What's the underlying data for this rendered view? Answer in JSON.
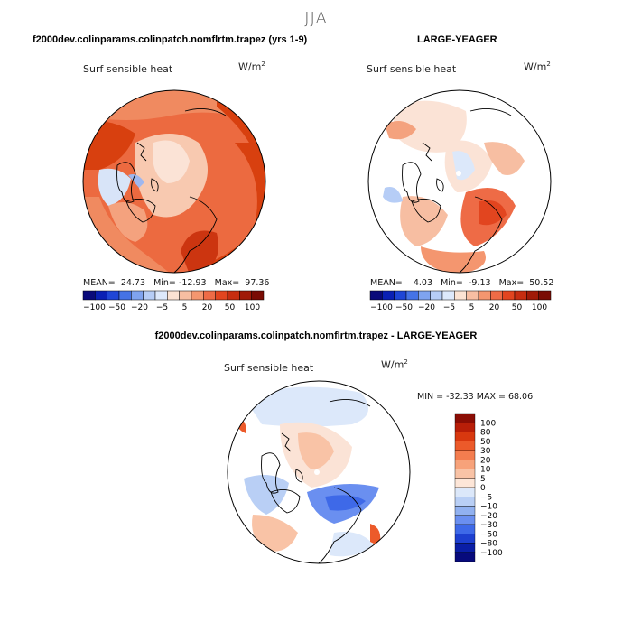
{
  "figure": {
    "season": "JJA",
    "panels": [
      {
        "title": "f2000dev.colinparams.colinpatch.nomflrtm.trapez (yrs 1-9)",
        "variable": "Surf sensible heat",
        "units": "W/m",
        "units_exp": "2",
        "stats": {
          "mean_label": "MEAN=",
          "mean": "24.73",
          "min_label": "Min=",
          "min": "-12.93",
          "max_label": "Max=",
          "max": "97.36"
        }
      },
      {
        "title": "LARGE-YEAGER",
        "variable": "Surf sensible heat",
        "units": "W/m",
        "units_exp": "2",
        "stats": {
          "mean_label": "MEAN=",
          "mean": "4.03",
          "min_label": "Min=",
          "min": "-9.13",
          "max_label": "Max=",
          "max": "50.52"
        }
      },
      {
        "title": "f2000dev.colinparams.colinpatch.nomflrtm.trapez - LARGE-YEAGER",
        "variable": "Surf sensible heat",
        "units": "W/m",
        "units_exp": "2",
        "stats_text": "MIN = -32.33 MAX = 68.06"
      }
    ]
  },
  "chart_data": [
    {
      "type": "heatmap",
      "projection": "north polar stereographic",
      "title": "f2000dev.colinparams.colinpatch.nomflrtm.trapez (yrs 1-9)",
      "variable": "Surf sensible heat",
      "units": "W/m2",
      "mean": 24.73,
      "min": -12.93,
      "max": 97.36,
      "colorbar": {
        "orientation": "horizontal",
        "tick_labels": [
          "-100",
          "-50",
          "-20",
          "-5",
          "5",
          "20",
          "50",
          "100"
        ],
        "colors": [
          "#0a0a7a",
          "#0a20b4",
          "#1f46d6",
          "#4573e6",
          "#7fa3ef",
          "#b6cdf6",
          "#dde9fb",
          "#fbe3d3",
          "#f7bea2",
          "#f4966f",
          "#ee6b46",
          "#e2451f",
          "#c72d10",
          "#a01a08",
          "#7a0c04"
        ]
      }
    },
    {
      "type": "heatmap",
      "projection": "north polar stereographic",
      "title": "LARGE-YEAGER",
      "variable": "Surf sensible heat",
      "units": "W/m2",
      "mean": 4.03,
      "min": -9.13,
      "max": 50.52,
      "colorbar": {
        "orientation": "horizontal",
        "tick_labels": [
          "-100",
          "-50",
          "-20",
          "-5",
          "5",
          "20",
          "50",
          "100"
        ],
        "colors": [
          "#0a0a7a",
          "#0a20b4",
          "#1f46d6",
          "#4573e6",
          "#7fa3ef",
          "#b6cdf6",
          "#dde9fb",
          "#fbe3d3",
          "#f7bea2",
          "#f4966f",
          "#ee6b46",
          "#e2451f",
          "#c72d10",
          "#a01a08",
          "#7a0c04"
        ]
      }
    },
    {
      "type": "heatmap",
      "projection": "north polar stereographic",
      "title": "f2000dev.colinparams.colinpatch.nomflrtm.trapez - LARGE-YEAGER",
      "variable": "Surf sensible heat",
      "units": "W/m2",
      "min": -32.33,
      "max": 68.06,
      "colorbar": {
        "orientation": "vertical",
        "tick_labels": [
          "100",
          "80",
          "50",
          "30",
          "20",
          "10",
          "5",
          "0",
          "-5",
          "-10",
          "-20",
          "-30",
          "-50",
          "-80",
          "-100"
        ],
        "colors": [
          "#8a0d04",
          "#b81e08",
          "#d8380f",
          "#ec5a2a",
          "#f47d4f",
          "#f7a27a",
          "#f9c3a6",
          "#fde6d8",
          "#dce8fa",
          "#b9cff5",
          "#91b1f0",
          "#6a8ff0",
          "#3e69e8",
          "#1d3fd0",
          "#0a1ea6",
          "#070a7c"
        ]
      }
    }
  ]
}
